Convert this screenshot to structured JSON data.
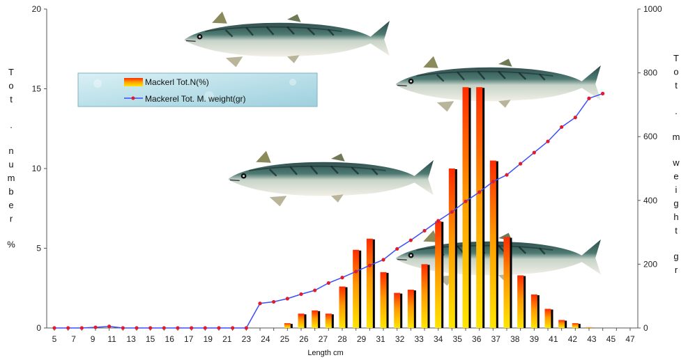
{
  "chart_data": {
    "type": "bar",
    "xlabel": "Length cm",
    "ylabel_left": "Tot . number %",
    "ylabel_right": "Tot . m weight gr",
    "ylim_left": [
      0,
      20
    ],
    "ylim_right": [
      0,
      1000
    ],
    "yticks_left": [
      "0",
      "5",
      "10",
      "15",
      "20"
    ],
    "yticks_right": [
      "0",
      "200",
      "400",
      "600",
      "800",
      "1000"
    ],
    "x_tick_labels": [
      "5",
      "7",
      "9",
      "11",
      "13",
      "15",
      "16",
      "17",
      "19",
      "21",
      "23",
      "24",
      "25",
      "26",
      "27",
      "28",
      "29",
      "31",
      "32",
      "33",
      "34",
      "35",
      "36",
      "37",
      "38",
      "39",
      "41",
      "42",
      "43",
      "45",
      "47"
    ],
    "legend": {
      "bar_label": "Mackerl Tot.N(%)",
      "line_label": "Mackerel Tot. M. weight(gr)",
      "position": "top-left"
    },
    "series": [
      {
        "name": "Mackerl Tot.N(%)",
        "kind": "bar",
        "axis": "left",
        "x": [
          22,
          23,
          24,
          25,
          26,
          27,
          28,
          29,
          30,
          31,
          32,
          33,
          34,
          35,
          36,
          37,
          38,
          39,
          40,
          41,
          42,
          43,
          44
        ],
        "values": [
          0.3,
          0.9,
          1.1,
          0.9,
          2.6,
          4.9,
          5.6,
          3.5,
          2.2,
          2.4,
          4.0,
          6.7,
          10.0,
          15.1,
          15.1,
          10.5,
          5.7,
          3.3,
          2.1,
          1.2,
          0.5,
          0.3,
          0.05
        ]
      },
      {
        "name": "Mackerel Tot. M. weight(gr)",
        "kind": "line",
        "axis": "right",
        "x": [
          5,
          6,
          7,
          8,
          9,
          10,
          11,
          12,
          13,
          14,
          15,
          16,
          17,
          18,
          19,
          20,
          21,
          22,
          23,
          24,
          25,
          26,
          27,
          28,
          29,
          30,
          31,
          32,
          33,
          34,
          35,
          36,
          37,
          38,
          39,
          40,
          41,
          42,
          43,
          44,
          45
        ],
        "values": [
          0,
          0,
          0,
          2,
          5,
          0,
          0,
          0,
          0,
          0,
          0,
          0,
          0,
          0,
          0,
          77,
          82,
          92,
          106,
          118,
          141,
          158,
          177,
          196,
          214,
          248,
          275,
          305,
          336,
          364,
          397,
          426,
          459,
          480,
          515,
          550,
          585,
          630,
          660,
          720,
          735
        ]
      }
    ]
  },
  "colors": {
    "bar_top": "#ff2a00",
    "bar_mid": "#ff9900",
    "bar_bottom": "#ffe600",
    "bar_shadow": "#000000",
    "line": "#3b4cff",
    "marker": "#e21b2a",
    "legend_bg": "#bfe3ec"
  },
  "decorations": [
    "mackerel-fish-image",
    "mackerel-fish-image",
    "mackerel-fish-image",
    "mackerel-fish-image"
  ]
}
